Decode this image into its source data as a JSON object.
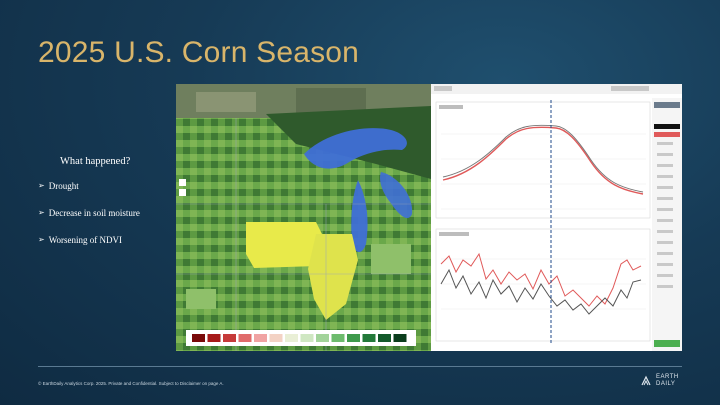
{
  "slide": {
    "title": "2025 U.S. Corn Season",
    "subheading": "What happened?",
    "bullets": [
      "Drought",
      "Decrease in soil moisture",
      "Worsening of NDVI"
    ],
    "footer": "© EarthDaily Analytics Corp. 2025. Private and Confidential. Subject to Disclaimer on page A.",
    "logo_line1": "EARTH",
    "logo_line2": "DAILY"
  },
  "colors": {
    "title": "#d9b56a",
    "background": "#163a55",
    "ndvi_current": "#e05a5a",
    "ndvi_reference": "#555555",
    "highlight_states": "#e8ea4a",
    "water": "#3f6fd6"
  },
  "screenshot": {
    "map_icons": [
      "layers-icon",
      "zoom-icon"
    ],
    "legend_swatches": [
      "#7a0a0a",
      "#a71a1a",
      "#c63a3a",
      "#e06b6b",
      "#f0a3a3",
      "#f3d2c4",
      "#e9efd6",
      "#cfe7c2",
      "#a2d39a",
      "#6dbb6d",
      "#3e9a4c",
      "#23793a",
      "#145a2b",
      "#0b3d1d"
    ],
    "sidebar_items": 14
  }
}
